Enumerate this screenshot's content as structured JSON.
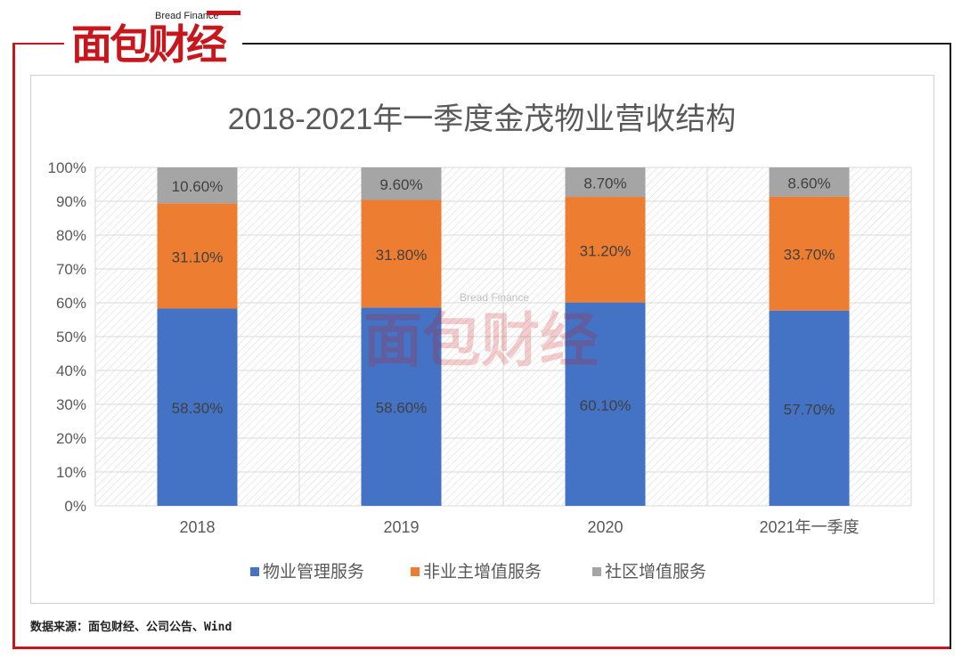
{
  "logo": {
    "main": "面包财经",
    "sub": "Bread Finance"
  },
  "watermark": {
    "main": "面包财经",
    "sub": "Bread Finance"
  },
  "source_note": "数据来源：面包财经、公司公告、Wind",
  "colors": {
    "brand_red": "#c8161d",
    "series": [
      "#4472c4",
      "#ed7d31",
      "#a5a5a5"
    ]
  },
  "chart_data": {
    "type": "bar",
    "stacked": true,
    "title": "2018-2021年一季度金茂物业营收结构",
    "categories": [
      "2018",
      "2019",
      "2020",
      "2021年一季度"
    ],
    "series": [
      {
        "name": "物业管理服务",
        "values": [
          58.3,
          58.6,
          60.1,
          57.7
        ],
        "labels": [
          "58.30%",
          "58.60%",
          "60.10%",
          "57.70%"
        ]
      },
      {
        "name": "非业主增值服务",
        "values": [
          31.1,
          31.8,
          31.2,
          33.7
        ],
        "labels": [
          "31.10%",
          "31.80%",
          "31.20%",
          "33.70%"
        ]
      },
      {
        "name": "社区增值服务",
        "values": [
          10.6,
          9.6,
          8.7,
          8.6
        ],
        "labels": [
          "10.60%",
          "9.60%",
          "8.70%",
          "8.60%"
        ]
      }
    ],
    "ylim": [
      0,
      100
    ],
    "yticks": [
      "0%",
      "10%",
      "20%",
      "30%",
      "40%",
      "50%",
      "60%",
      "70%",
      "80%",
      "90%",
      "100%"
    ],
    "grid": true,
    "legend": "bottom"
  }
}
